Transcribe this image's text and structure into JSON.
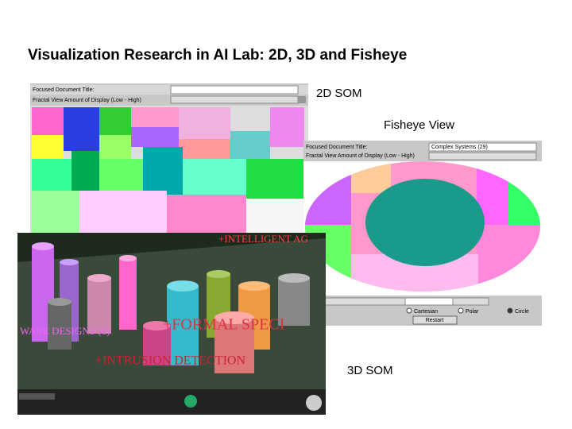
{
  "title": "Visualization Research in AI Lab: 2D, 3D and Fisheye",
  "labels": {
    "som2d": "2D SOM",
    "fisheye": "Fisheye View",
    "som3d": "3D SOM"
  },
  "som2d_panel": {
    "focused_label": "Focused Document Title:",
    "fractal_label": "Fractal View Amount of Display (Low - High)"
  },
  "fisheye_panel": {
    "focused_label": "Focused Document Title:",
    "focused_value": "Complex Systems (29)",
    "fractal_label": "Fractal View Amount of Display (Low - High)",
    "restart": "Restart",
    "options": [
      "Cartesian",
      "Polar",
      "Circle"
    ]
  },
  "som3d_scene": {
    "labels": [
      "+INTELLIGENT AG",
      "+FORMAL SPECI",
      "+INTRUSION DETECTION",
      "WARE DESIGNS (6)"
    ]
  }
}
